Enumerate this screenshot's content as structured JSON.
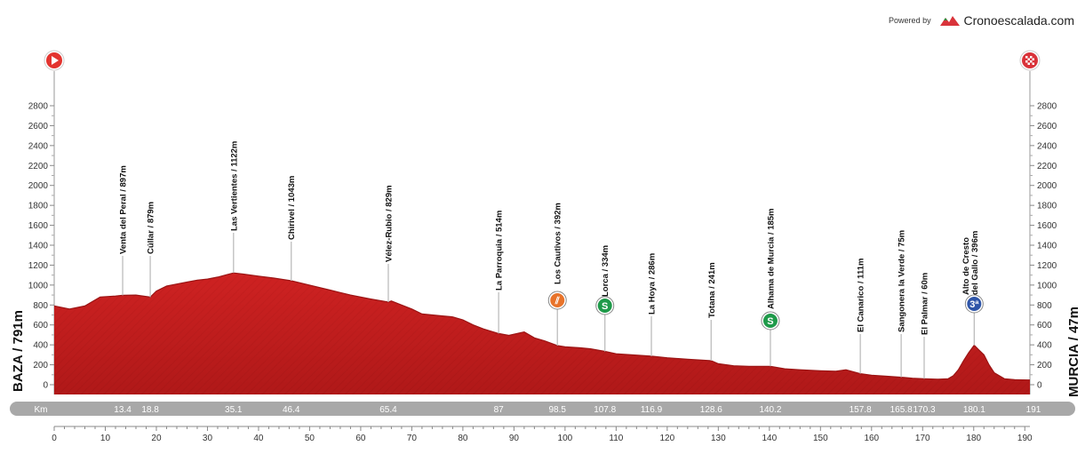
{
  "branding": {
    "powered_by": "Powered by",
    "logo_text": "Cronoescalada.com"
  },
  "chart_data": {
    "type": "area",
    "start_label": "BAZA / 791m",
    "end_label": "MURCIA / 47m",
    "x_unit_label": "Km",
    "xlim": [
      0,
      191
    ],
    "x_ticks": [
      0,
      10,
      20,
      30,
      40,
      50,
      60,
      70,
      80,
      90,
      100,
      110,
      120,
      130,
      140,
      150,
      160,
      170,
      180,
      190
    ],
    "y_ticks": [
      0,
      200,
      400,
      600,
      800,
      1000,
      1200,
      1400,
      1600,
      1800,
      2000,
      2200,
      2400,
      2600,
      2800
    ],
    "ylim": [
      -100,
      2900
    ],
    "profile": {
      "x": [
        0,
        3,
        6,
        9,
        12,
        13.4,
        16,
        18.8,
        20,
        22,
        24,
        26,
        28,
        30,
        32,
        35.1,
        37,
        40,
        43,
        46.4,
        50,
        54,
        58,
        62,
        65.4,
        66,
        68,
        70,
        72,
        74,
        76,
        78,
        80,
        82,
        84,
        87,
        89,
        92,
        94,
        96,
        98.5,
        100,
        103,
        105,
        107.8,
        110,
        113,
        116.9,
        120,
        124,
        128.6,
        130,
        133,
        136,
        140.2,
        143,
        146,
        150,
        153,
        155,
        157.8,
        160,
        163,
        165.8,
        168,
        170.3,
        173,
        175,
        176,
        177,
        178,
        179,
        180.1,
        181,
        182,
        183,
        184,
        186,
        188,
        191
      ],
      "y": [
        791,
        760,
        790,
        880,
        890,
        897,
        900,
        879,
        940,
        990,
        1010,
        1030,
        1050,
        1060,
        1080,
        1122,
        1110,
        1090,
        1070,
        1043,
        1000,
        950,
        900,
        860,
        829,
        840,
        800,
        760,
        710,
        700,
        690,
        680,
        650,
        600,
        560,
        514,
        495,
        530,
        470,
        440,
        392,
        380,
        370,
        360,
        334,
        310,
        300,
        286,
        270,
        255,
        241,
        210,
        190,
        185,
        185,
        160,
        150,
        140,
        135,
        150,
        111,
        95,
        85,
        75,
        65,
        60,
        55,
        60,
        90,
        150,
        240,
        320,
        396,
        350,
        300,
        200,
        120,
        60,
        50,
        47
      ]
    },
    "waypoints": [
      {
        "km": 13.4,
        "label": "Venta del Peral / 897m",
        "km_label": "13.4"
      },
      {
        "km": 18.8,
        "label": "Cúllar / 879m",
        "km_label": "18.8"
      },
      {
        "km": 35.1,
        "label": "Las Vertientes / 1122m",
        "km_label": "35.1"
      },
      {
        "km": 46.4,
        "label": "Chirivel / 1043m",
        "km_label": "46.4"
      },
      {
        "km": 65.4,
        "label": "Vélez-Rubio / 829m",
        "km_label": "65.4"
      },
      {
        "km": 87,
        "label": "La Parroquia / 514m",
        "km_label": "87"
      },
      {
        "km": 98.5,
        "label": "Los Cautivos / 392m",
        "km_label": "98.5",
        "icon": "feed-zone-icon"
      },
      {
        "km": 107.8,
        "label": "Lorca / 334m",
        "km_label": "107.8",
        "icon": "sprint-icon"
      },
      {
        "km": 116.9,
        "label": "La Hoya / 286m",
        "km_label": "116.9"
      },
      {
        "km": 128.6,
        "label": "Totana / 241m",
        "km_label": "128.6"
      },
      {
        "km": 140.2,
        "label": "Alhama de Murcia / 185m",
        "km_label": "140.2",
        "icon": "sprint-icon"
      },
      {
        "km": 157.8,
        "label": "El Canarico / 111m",
        "km_label": "157.8"
      },
      {
        "km": 165.8,
        "label": "Sangonera la Verde / 75m",
        "km_label": "165.8"
      },
      {
        "km": 170.3,
        "label": "El Palmar / 60m",
        "km_label": "170.3"
      },
      {
        "km": 180.1,
        "label": "Alto de Cresto del Gallo / 396m",
        "label_lines": [
          "Alto de Cresto",
          "del Gallo / 396m"
        ],
        "km_label": "180.1",
        "icon": "climb-icon",
        "icon_text": "3ª"
      }
    ],
    "final_km_label": "191",
    "icons": {
      "start": "start-play-icon",
      "finish": "finish-flag-icon"
    },
    "colors": {
      "profile_fill": "#c41e1e",
      "profile_dark": "#9b1414",
      "km_bar": "#a8a8a8",
      "feed_zone": "#e8732a",
      "sprint": "#1f9a4a",
      "climb": "#2e55a8",
      "start": "#e3342f",
      "finish": "#d9333a"
    },
    "grid": false,
    "legend": "none"
  }
}
